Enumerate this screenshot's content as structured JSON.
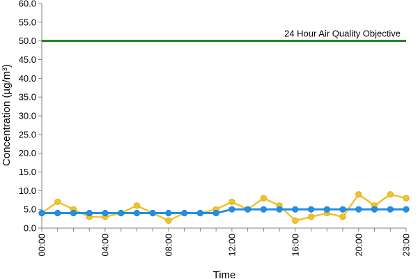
{
  "chart_data": {
    "type": "line",
    "title": "",
    "xlabel": "Time",
    "ylabel": "Concentration (µg/m³)",
    "ylim": [
      0,
      60
    ],
    "y_ticks": [
      "0.0",
      "5.0",
      "10.0",
      "15.0",
      "20.0",
      "25.0",
      "30.0",
      "35.0",
      "40.0",
      "45.0",
      "50.0",
      "55.0",
      "60.0"
    ],
    "x_tick_labels": [
      "00:00",
      "04:00",
      "08:00",
      "12:00",
      "16:00",
      "20:00",
      "23:00"
    ],
    "x_tick_hours": [
      0,
      4,
      8,
      12,
      16,
      20,
      23
    ],
    "x_range_hours": [
      0,
      23
    ],
    "grid": false,
    "legend": "none",
    "series": [
      {
        "color": "#f2c12e",
        "marker": "circle",
        "x_hours": [
          0,
          1,
          2,
          3,
          4,
          5,
          6,
          7,
          8,
          9,
          10,
          11,
          12,
          13,
          14,
          15,
          16,
          17,
          18,
          19,
          20,
          21,
          22,
          23
        ],
        "values": [
          4,
          7,
          5,
          3,
          3,
          4,
          6,
          4,
          2,
          4,
          4,
          5,
          7,
          5,
          8,
          6,
          2,
          3,
          4,
          3,
          9,
          6,
          9,
          8
        ]
      },
      {
        "color": "#1e90e6",
        "marker": "circle",
        "x_hours": [
          0,
          1,
          2,
          3,
          4,
          5,
          6,
          7,
          8,
          9,
          10,
          11,
          12,
          13,
          14,
          15,
          16,
          17,
          18,
          19,
          20,
          21,
          22,
          23
        ],
        "values": [
          4,
          4,
          4,
          4,
          4,
          4,
          4,
          4,
          4,
          4,
          4,
          4,
          5,
          5,
          5,
          5,
          5,
          5,
          5,
          5,
          5,
          5,
          5,
          5
        ]
      }
    ],
    "reference_line": {
      "value": 50,
      "label": "24 Hour Air Quality Objective",
      "color": "#1f7a1f"
    },
    "axis_color": "#808080"
  }
}
